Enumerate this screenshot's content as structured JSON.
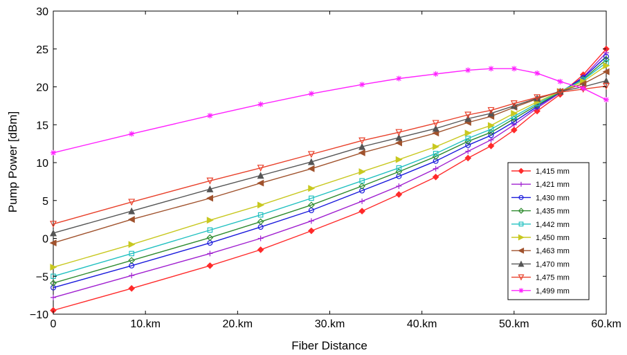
{
  "chart_data": {
    "type": "line",
    "xlabel": "Fiber Distance",
    "ylabel": "Pump Power [dBm]",
    "xlim": [
      0,
      60
    ],
    "ylim": [
      -10,
      30
    ],
    "xticks": [
      0,
      10,
      20,
      30,
      40,
      50,
      60
    ],
    "xtick_labels": [
      "0",
      "10.km",
      "20.km",
      "30.km",
      "40.km",
      "50.km",
      "60.km"
    ],
    "yticks": [
      -10,
      -5,
      0,
      5,
      10,
      15,
      20,
      25,
      30
    ],
    "ytick_labels": [
      "−10",
      "−5",
      "0",
      "5",
      "10",
      "15",
      "20",
      "25",
      "30"
    ],
    "grid": false,
    "legend_position": "right-lower",
    "x": [
      0,
      8.5,
      17,
      22.5,
      28,
      33.5,
      37.5,
      41.5,
      45,
      47.5,
      50,
      52.5,
      55,
      57.5,
      60
    ],
    "series": [
      {
        "name": "1,415 mm",
        "color": "#ff2a2a",
        "marker": "diamond",
        "values": [
          -9.5,
          -6.6,
          -3.6,
          -1.5,
          1.0,
          3.6,
          5.8,
          8.1,
          10.6,
          12.2,
          14.3,
          16.8,
          19.0,
          21.6,
          25.0
        ]
      },
      {
        "name": "1,421 mm",
        "color": "#a020d0",
        "marker": "plus",
        "values": [
          -7.8,
          -4.9,
          -2.0,
          0.0,
          2.3,
          4.9,
          6.9,
          9.2,
          11.5,
          13.0,
          15.0,
          17.2,
          19.2,
          21.3,
          24.5
        ]
      },
      {
        "name": "1,430 mm",
        "color": "#1a1adc",
        "marker": "circle",
        "values": [
          -6.5,
          -3.6,
          -0.6,
          1.5,
          3.7,
          6.3,
          8.2,
          10.2,
          12.3,
          13.6,
          15.4,
          17.4,
          19.3,
          21.2,
          24.0
        ]
      },
      {
        "name": "1,435 mm",
        "color": "#2e8b2e",
        "marker": "diamond-open",
        "values": [
          -5.9,
          -2.9,
          0.1,
          2.2,
          4.4,
          6.9,
          8.8,
          10.8,
          12.8,
          14.0,
          15.8,
          17.6,
          19.3,
          21.0,
          23.6
        ]
      },
      {
        "name": "1,442 mm",
        "color": "#20c0c0",
        "marker": "square",
        "values": [
          -5.0,
          -2.0,
          1.1,
          3.1,
          5.3,
          7.6,
          9.3,
          11.2,
          13.2,
          14.4,
          16.1,
          17.8,
          19.4,
          20.9,
          23.2
        ]
      },
      {
        "name": "1,450 mm",
        "color": "#c8c820",
        "marker": "triangle-right",
        "values": [
          -3.8,
          -0.8,
          2.4,
          4.4,
          6.6,
          8.8,
          10.4,
          12.1,
          13.9,
          14.9,
          16.5,
          18.0,
          19.4,
          20.7,
          22.8
        ]
      },
      {
        "name": "1,463 mm",
        "color": "#a0522d",
        "marker": "triangle-left",
        "values": [
          -0.6,
          2.5,
          5.3,
          7.3,
          9.2,
          11.3,
          12.6,
          13.9,
          15.3,
          16.1,
          17.3,
          18.4,
          19.4,
          20.4,
          22.0
        ]
      },
      {
        "name": "1,470 mm",
        "color": "#555555",
        "marker": "triangle-up",
        "values": [
          0.7,
          3.6,
          6.5,
          8.3,
          10.1,
          12.1,
          13.3,
          14.5,
          15.8,
          16.5,
          17.5,
          18.5,
          19.4,
          20.0,
          20.8
        ]
      },
      {
        "name": "1,475 mm",
        "color": "#e8402a",
        "marker": "triangle-down",
        "values": [
          1.9,
          4.8,
          7.6,
          9.3,
          11.1,
          12.9,
          14.0,
          15.2,
          16.3,
          16.9,
          17.8,
          18.6,
          19.3,
          19.7,
          20.1
        ]
      },
      {
        "name": "1,499 mm",
        "color": "#ff20ff",
        "marker": "star",
        "values": [
          11.3,
          13.8,
          16.2,
          17.7,
          19.1,
          20.3,
          21.1,
          21.7,
          22.2,
          22.4,
          22.4,
          21.8,
          20.7,
          19.8,
          18.3
        ]
      }
    ]
  }
}
